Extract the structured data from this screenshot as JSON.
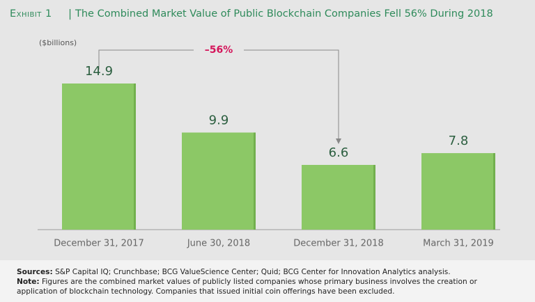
{
  "chart_data": {
    "type": "bar",
    "exhibit": "Exhibit 1",
    "title": "The Combined Market Value of Public Blockchain Companies Fell 56% During 2018",
    "unit_label": "($billions)",
    "categories": [
      "December 31, 2017",
      "June 30, 2018",
      "December 31, 2018",
      "March 31, 2019"
    ],
    "values": [
      14.9,
      9.9,
      6.6,
      7.8
    ],
    "color": "#8cc866",
    "annotation": "–56%"
  },
  "footer": {
    "sources_label": "Sources:",
    "sources": "S&P Capital IQ; Crunchbase; BCG ValueScience Center; Quid; BCG Center for Innovation Analytics analysis.",
    "note_label": "Note:",
    "note": "Figures are the combined market values of publicly listed companies whose primary business involves the creation or application of blockchain technology. Companies that issued initial coin offerings have been excluded."
  }
}
